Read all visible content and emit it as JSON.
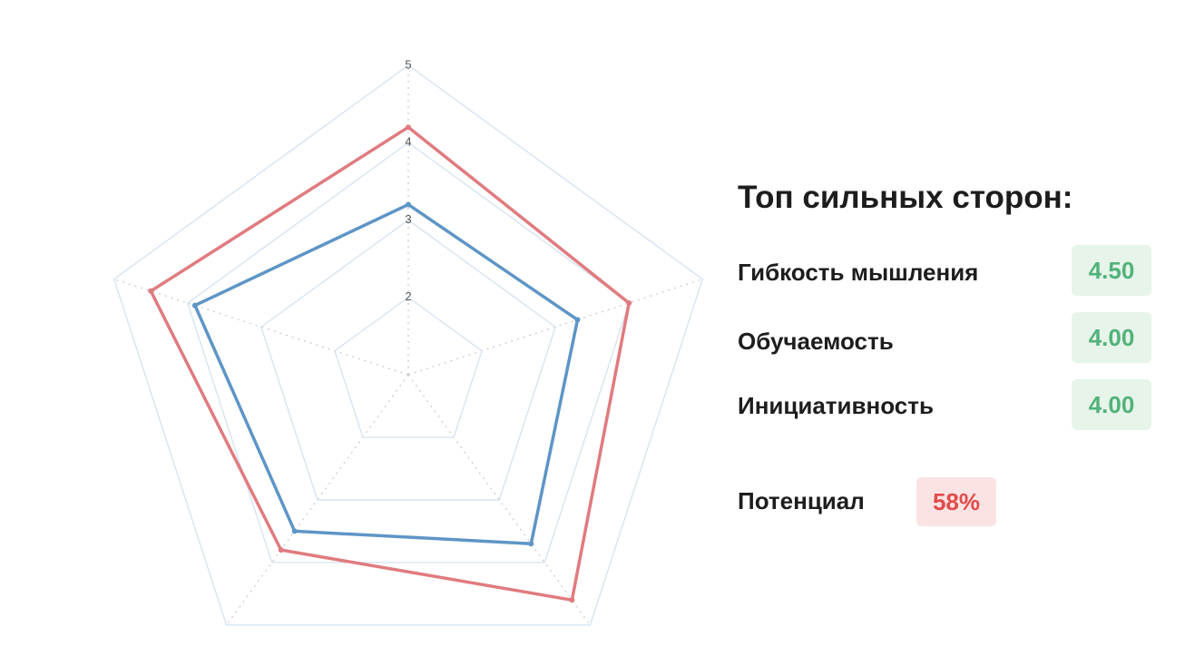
{
  "chart_data": {
    "type": "radar",
    "categories": [
      null,
      null,
      null,
      null,
      null
    ],
    "rlim": [
      1,
      5
    ],
    "rticks": [
      2,
      3,
      4,
      5
    ],
    "grid": true,
    "series": [
      {
        "color": "#e07b7f",
        "values": [
          4.2,
          4.0,
          4.6,
          3.8,
          4.5
        ]
      },
      {
        "color": "#5e95c6",
        "values": [
          3.2,
          3.3,
          3.7,
          3.5,
          3.9
        ]
      }
    ]
  },
  "panel": {
    "title": "Топ сильных сторон:",
    "items": [
      {
        "label": "Гибкость мышления",
        "score": "4.50"
      },
      {
        "label": "Обучаемость",
        "score": "4.00"
      },
      {
        "label": "Инициативность",
        "score": "4.00"
      }
    ],
    "potential": {
      "label": "Потенциал",
      "score": "58%"
    }
  }
}
